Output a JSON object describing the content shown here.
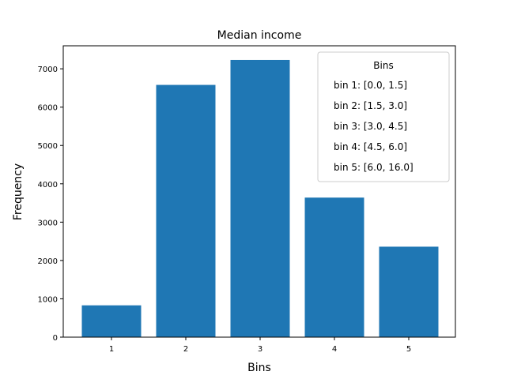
{
  "chart_data": {
    "type": "bar",
    "title": "Median income",
    "xlabel": "Bins",
    "ylabel": "Frequency",
    "categories": [
      "1",
      "2",
      "3",
      "4",
      "5"
    ],
    "values": [
      830,
      6580,
      7230,
      3640,
      2360
    ],
    "ylim": [
      0,
      7600
    ],
    "yticks": [
      0,
      1000,
      2000,
      3000,
      4000,
      5000,
      6000,
      7000
    ],
    "bar_color": "#1f77b4",
    "grid": false,
    "legend": {
      "title": "Bins",
      "placement": "top-right",
      "entries": [
        "bin 1: [0.0, 1.5]",
        "bin 2: [1.5, 3.0]",
        "bin 3: [3.0, 4.5]",
        "bin 4: [4.5, 6.0]",
        "bin 5: [6.0, 16.0]"
      ]
    }
  }
}
